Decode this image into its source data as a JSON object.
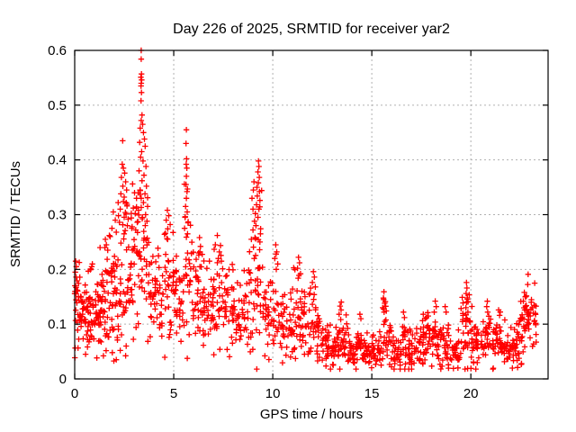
{
  "window": {
    "kind": "gnuplot-style scatter plot image"
  },
  "chart_data": {
    "type": "scatter",
    "title": "Day 226 of 2025, SRMTID for receiver yar2",
    "xlabel": "GPS time / hours",
    "ylabel": "SRMTID / TECUs",
    "xlim": [
      0,
      23.9
    ],
    "ylim": [
      0,
      0.6
    ],
    "xticks": [
      0,
      5,
      10,
      15,
      20
    ],
    "yticks": [
      0,
      0.1,
      0.2,
      0.3,
      0.4,
      0.5,
      0.6
    ],
    "grid": true,
    "legend": "none",
    "marker": "plus",
    "style": {
      "marker_color": "#ff0000",
      "grid_color": "#b0b0b0",
      "border_color": "#000000",
      "background": "#ffffff"
    },
    "density_bins": {
      "note": "dense scatter summarized per time bin",
      "bin_width_hours": 0.25,
      "columns": [
        "x_start_hours",
        "count",
        "mean_tecus",
        "sigma_tecus"
      ],
      "rows": [
        [
          0.0,
          24,
          0.13,
          0.04
        ],
        [
          0.25,
          24,
          0.125,
          0.035
        ],
        [
          0.5,
          22,
          0.12,
          0.035
        ],
        [
          0.75,
          22,
          0.125,
          0.04
        ],
        [
          1.0,
          22,
          0.13,
          0.04
        ],
        [
          1.25,
          22,
          0.135,
          0.045
        ],
        [
          1.5,
          22,
          0.14,
          0.05
        ],
        [
          1.75,
          22,
          0.15,
          0.05
        ],
        [
          2.0,
          18,
          0.16,
          0.06
        ],
        [
          2.25,
          18,
          0.19,
          0.065
        ],
        [
          2.5,
          18,
          0.2,
          0.065
        ],
        [
          2.75,
          18,
          0.21,
          0.065
        ],
        [
          3.0,
          18,
          0.22,
          0.07
        ],
        [
          3.25,
          16,
          0.25,
          0.09
        ],
        [
          3.5,
          16,
          0.22,
          0.08
        ],
        [
          3.75,
          16,
          0.17,
          0.05
        ],
        [
          4.0,
          16,
          0.16,
          0.05
        ],
        [
          4.25,
          16,
          0.15,
          0.05
        ],
        [
          4.5,
          16,
          0.17,
          0.055
        ],
        [
          4.75,
          16,
          0.18,
          0.055
        ],
        [
          5.0,
          16,
          0.15,
          0.04
        ],
        [
          5.25,
          16,
          0.15,
          0.04
        ],
        [
          5.5,
          16,
          0.2,
          0.065
        ],
        [
          5.75,
          16,
          0.17,
          0.05
        ],
        [
          6.0,
          16,
          0.14,
          0.04
        ],
        [
          6.25,
          16,
          0.15,
          0.045
        ],
        [
          6.5,
          16,
          0.14,
          0.04
        ],
        [
          6.75,
          16,
          0.13,
          0.04
        ],
        [
          7.0,
          16,
          0.14,
          0.045
        ],
        [
          7.25,
          16,
          0.15,
          0.05
        ],
        [
          7.5,
          16,
          0.14,
          0.04
        ],
        [
          7.75,
          14,
          0.13,
          0.04
        ],
        [
          8.0,
          14,
          0.12,
          0.035
        ],
        [
          8.25,
          14,
          0.115,
          0.03
        ],
        [
          8.5,
          14,
          0.12,
          0.035
        ],
        [
          8.75,
          14,
          0.14,
          0.05
        ],
        [
          9.0,
          16,
          0.17,
          0.065
        ],
        [
          9.25,
          16,
          0.19,
          0.075
        ],
        [
          9.5,
          14,
          0.13,
          0.04
        ],
        [
          9.75,
          14,
          0.11,
          0.03
        ],
        [
          10.0,
          14,
          0.12,
          0.04
        ],
        [
          10.25,
          14,
          0.11,
          0.035
        ],
        [
          10.5,
          14,
          0.1,
          0.03
        ],
        [
          10.75,
          14,
          0.1,
          0.03
        ],
        [
          11.0,
          14,
          0.11,
          0.04
        ],
        [
          11.25,
          16,
          0.12,
          0.045
        ],
        [
          11.5,
          14,
          0.1,
          0.035
        ],
        [
          11.75,
          14,
          0.1,
          0.035
        ],
        [
          12.0,
          14,
          0.1,
          0.04
        ],
        [
          12.25,
          14,
          0.08,
          0.03
        ],
        [
          12.5,
          16,
          0.06,
          0.022
        ],
        [
          12.75,
          16,
          0.055,
          0.02
        ],
        [
          13.0,
          16,
          0.055,
          0.02
        ],
        [
          13.25,
          16,
          0.07,
          0.026
        ],
        [
          13.5,
          16,
          0.068,
          0.024
        ],
        [
          13.75,
          14,
          0.055,
          0.02
        ],
        [
          14.0,
          14,
          0.05,
          0.016
        ],
        [
          14.25,
          16,
          0.06,
          0.022
        ],
        [
          14.5,
          16,
          0.055,
          0.02
        ],
        [
          14.75,
          14,
          0.05,
          0.016
        ],
        [
          15.0,
          14,
          0.05,
          0.016
        ],
        [
          15.25,
          14,
          0.055,
          0.02
        ],
        [
          15.5,
          16,
          0.08,
          0.03
        ],
        [
          15.75,
          16,
          0.07,
          0.026
        ],
        [
          16.0,
          14,
          0.055,
          0.02
        ],
        [
          16.25,
          14,
          0.05,
          0.016
        ],
        [
          16.5,
          16,
          0.06,
          0.022
        ],
        [
          16.75,
          14,
          0.055,
          0.02
        ],
        [
          17.0,
          14,
          0.05,
          0.016
        ],
        [
          17.25,
          14,
          0.055,
          0.02
        ],
        [
          17.5,
          16,
          0.07,
          0.026
        ],
        [
          17.75,
          16,
          0.075,
          0.028
        ],
        [
          18.0,
          16,
          0.07,
          0.026
        ],
        [
          18.25,
          14,
          0.06,
          0.022
        ],
        [
          18.5,
          14,
          0.065,
          0.024
        ],
        [
          18.75,
          14,
          0.06,
          0.022
        ],
        [
          19.0,
          14,
          0.055,
          0.02
        ],
        [
          19.25,
          14,
          0.06,
          0.022
        ],
        [
          19.5,
          16,
          0.08,
          0.03
        ],
        [
          19.75,
          18,
          0.1,
          0.035
        ],
        [
          20.0,
          16,
          0.08,
          0.03
        ],
        [
          20.25,
          14,
          0.06,
          0.022
        ],
        [
          20.5,
          14,
          0.065,
          0.024
        ],
        [
          20.75,
          16,
          0.08,
          0.028
        ],
        [
          21.0,
          14,
          0.06,
          0.022
        ],
        [
          21.25,
          16,
          0.075,
          0.026
        ],
        [
          21.5,
          14,
          0.06,
          0.022
        ],
        [
          21.75,
          14,
          0.055,
          0.02
        ],
        [
          22.0,
          14,
          0.06,
          0.022
        ],
        [
          22.25,
          16,
          0.07,
          0.026
        ],
        [
          22.5,
          16,
          0.09,
          0.03
        ],
        [
          22.75,
          18,
          0.11,
          0.03
        ],
        [
          23.0,
          16,
          0.11,
          0.03
        ]
      ]
    },
    "outlier_points": [
      [
        0.05,
        0.215
      ],
      [
        0.08,
        0.205
      ],
      [
        0.03,
        0.195
      ],
      [
        1.55,
        0.255
      ],
      [
        1.75,
        0.262
      ],
      [
        1.6,
        0.245
      ],
      [
        1.95,
        0.305
      ],
      [
        2.05,
        0.29
      ],
      [
        1.88,
        0.275
      ],
      [
        2.1,
        0.268
      ],
      [
        2.42,
        0.435
      ],
      [
        2.4,
        0.392
      ],
      [
        2.46,
        0.385
      ],
      [
        2.52,
        0.376
      ],
      [
        2.36,
        0.368
      ],
      [
        2.57,
        0.36
      ],
      [
        2.43,
        0.352
      ],
      [
        2.62,
        0.345
      ],
      [
        2.33,
        0.338
      ],
      [
        2.5,
        0.332
      ],
      [
        2.46,
        0.324
      ],
      [
        2.64,
        0.316
      ],
      [
        2.3,
        0.31
      ],
      [
        2.56,
        0.304
      ],
      [
        2.21,
        0.298
      ],
      [
        2.7,
        0.292
      ],
      [
        2.26,
        0.286
      ],
      [
        2.66,
        0.28
      ],
      [
        2.92,
        0.356
      ],
      [
        3.02,
        0.34
      ],
      [
        3.12,
        0.33
      ],
      [
        2.96,
        0.312
      ],
      [
        3.06,
        0.302
      ],
      [
        2.86,
        0.294
      ],
      [
        3.16,
        0.286
      ],
      [
        2.9,
        0.278
      ],
      [
        3.08,
        0.272
      ],
      [
        3.36,
        0.6
      ],
      [
        3.36,
        0.584
      ],
      [
        3.37,
        0.557
      ],
      [
        3.34,
        0.551
      ],
      [
        3.38,
        0.546
      ],
      [
        3.36,
        0.54
      ],
      [
        3.35,
        0.535
      ],
      [
        3.37,
        0.523
      ],
      [
        3.35,
        0.508
      ],
      [
        3.4,
        0.482
      ],
      [
        3.36,
        0.472
      ],
      [
        3.43,
        0.465
      ],
      [
        3.31,
        0.458
      ],
      [
        3.47,
        0.45
      ],
      [
        3.52,
        0.438
      ],
      [
        3.28,
        0.432
      ],
      [
        3.56,
        0.425
      ],
      [
        3.38,
        0.415
      ],
      [
        3.33,
        0.405
      ],
      [
        3.45,
        0.398
      ],
      [
        3.6,
        0.388
      ],
      [
        3.25,
        0.38
      ],
      [
        3.5,
        0.372
      ],
      [
        3.4,
        0.362
      ],
      [
        3.62,
        0.352
      ],
      [
        3.3,
        0.345
      ],
      [
        3.55,
        0.338
      ],
      [
        3.36,
        0.33
      ],
      [
        3.47,
        0.322
      ],
      [
        3.68,
        0.315
      ],
      [
        3.22,
        0.308
      ],
      [
        3.58,
        0.3
      ],
      [
        3.42,
        0.295
      ],
      [
        3.65,
        0.288
      ],
      [
        4.68,
        0.308
      ],
      [
        4.75,
        0.298
      ],
      [
        4.62,
        0.29
      ],
      [
        4.82,
        0.282
      ],
      [
        4.7,
        0.274
      ],
      [
        4.58,
        0.266
      ],
      [
        5.64,
        0.455
      ],
      [
        5.62,
        0.43
      ],
      [
        5.65,
        0.402
      ],
      [
        5.63,
        0.392
      ],
      [
        5.66,
        0.385
      ],
      [
        5.64,
        0.37
      ],
      [
        5.62,
        0.355
      ],
      [
        5.67,
        0.342
      ],
      [
        5.64,
        0.33
      ],
      [
        5.6,
        0.315
      ],
      [
        5.68,
        0.305
      ],
      [
        5.57,
        0.295
      ],
      [
        5.72,
        0.285
      ],
      [
        5.55,
        0.275
      ],
      [
        5.7,
        0.265
      ],
      [
        6.3,
        0.258
      ],
      [
        6.35,
        0.242
      ],
      [
        6.25,
        0.23
      ],
      [
        7.2,
        0.262
      ],
      [
        7.1,
        0.245
      ],
      [
        7.3,
        0.232
      ],
      [
        7.25,
        0.22
      ],
      [
        8.92,
        0.255
      ],
      [
        8.95,
        0.33
      ],
      [
        9.0,
        0.272
      ],
      [
        9.02,
        0.345
      ],
      [
        9.05,
        0.36
      ],
      [
        9.08,
        0.288
      ],
      [
        9.1,
        0.258
      ],
      [
        9.12,
        0.302
      ],
      [
        9.15,
        0.28
      ],
      [
        9.18,
        0.318
      ],
      [
        9.2,
        0.35
      ],
      [
        9.22,
        0.334
      ],
      [
        9.25,
        0.378
      ],
      [
        9.25,
        0.295
      ],
      [
        9.27,
        0.358
      ],
      [
        9.28,
        0.398
      ],
      [
        9.3,
        0.388
      ],
      [
        9.3,
        0.31
      ],
      [
        9.32,
        0.368
      ],
      [
        9.33,
        0.342
      ],
      [
        9.35,
        0.326
      ],
      [
        9.35,
        0.25
      ],
      [
        9.38,
        0.265
      ],
      [
        10.15,
        0.245
      ],
      [
        10.2,
        0.232
      ],
      [
        10.1,
        0.22
      ],
      [
        10.25,
        0.21
      ],
      [
        10.18,
        0.2
      ],
      [
        11.3,
        0.222
      ],
      [
        11.35,
        0.212
      ],
      [
        11.25,
        0.202
      ],
      [
        11.4,
        0.192
      ],
      [
        11.28,
        0.184
      ],
      [
        12.05,
        0.196
      ],
      [
        12.1,
        0.186
      ],
      [
        12.0,
        0.176
      ],
      [
        12.15,
        0.168
      ],
      [
        13.4,
        0.133
      ],
      [
        13.45,
        0.126
      ],
      [
        13.35,
        0.118
      ],
      [
        14.4,
        0.118
      ],
      [
        14.45,
        0.11
      ],
      [
        15.6,
        0.145
      ],
      [
        15.65,
        0.138
      ],
      [
        15.55,
        0.13
      ],
      [
        15.62,
        0.122
      ],
      [
        16.6,
        0.122
      ],
      [
        16.65,
        0.112
      ],
      [
        17.6,
        0.118
      ],
      [
        17.7,
        0.11
      ],
      [
        18.2,
        0.142
      ],
      [
        18.25,
        0.132
      ],
      [
        18.15,
        0.122
      ],
      [
        18.7,
        0.132
      ],
      [
        18.75,
        0.122
      ],
      [
        19.78,
        0.176
      ],
      [
        19.8,
        0.166
      ],
      [
        19.76,
        0.156
      ],
      [
        19.82,
        0.148
      ],
      [
        19.79,
        0.14
      ],
      [
        19.75,
        0.13
      ],
      [
        19.85,
        0.122
      ],
      [
        20.8,
        0.132
      ],
      [
        20.85,
        0.122
      ],
      [
        21.4,
        0.126
      ],
      [
        21.45,
        0.116
      ],
      [
        22.7,
        0.158
      ],
      [
        22.75,
        0.15
      ],
      [
        22.65,
        0.142
      ],
      [
        22.8,
        0.134
      ],
      [
        22.72,
        0.126
      ],
      [
        22.85,
        0.118
      ],
      [
        22.6,
        0.112
      ],
      [
        22.9,
        0.108
      ],
      [
        23.05,
        0.14
      ],
      [
        23.1,
        0.13
      ],
      [
        23.15,
        0.12
      ],
      [
        23.0,
        0.115
      ],
      [
        23.2,
        0.105
      ],
      [
        0.55,
        0.045
      ],
      [
        1.45,
        0.042
      ],
      [
        2.1,
        0.035
      ],
      [
        2.3,
        0.052
      ],
      [
        1.9,
        0.048
      ],
      [
        2.6,
        0.06
      ],
      [
        9.6,
        0.042
      ],
      [
        10.9,
        0.04
      ],
      [
        11.6,
        0.045
      ]
    ]
  }
}
